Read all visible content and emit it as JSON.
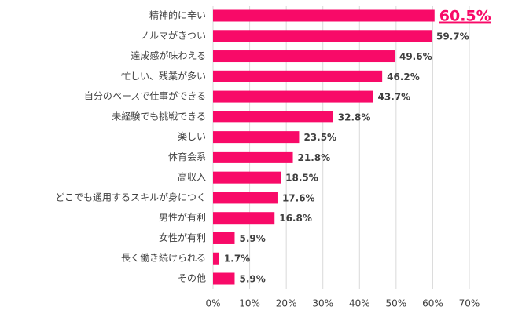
{
  "chart_data": {
    "type": "bar",
    "orientation": "horizontal",
    "categories": [
      "精神的に辛い",
      "ノルマがきつい",
      "達成感が味わえる",
      "忙しい、残業が多い",
      "自分のペースで仕事ができる",
      "未経験でも挑戦できる",
      "楽しい",
      "体育会系",
      "高収入",
      "どこでも通用するスキルが身につく",
      "男性が有利",
      "女性が有利",
      "長く働き続けられる",
      "その他"
    ],
    "values": [
      60.5,
      59.7,
      49.6,
      46.2,
      43.7,
      32.8,
      23.5,
      21.8,
      18.5,
      17.6,
      16.8,
      5.9,
      1.7,
      5.9
    ],
    "value_labels": [
      "60.5%",
      "59.7%",
      "49.6%",
      "46.2%",
      "43.7%",
      "32.8%",
      "23.5%",
      "21.8%",
      "18.5%",
      "17.6%",
      "16.8%",
      "5.9%",
      "1.7%",
      "5.9%"
    ],
    "color": "#f80a68",
    "xlim": [
      0,
      70
    ],
    "xticks": [
      {
        "value": 0,
        "label": "0%"
      },
      {
        "value": 10,
        "label": "10%"
      },
      {
        "value": 20,
        "label": "20%"
      },
      {
        "value": 30,
        "label": "30%"
      },
      {
        "value": 40,
        "label": "40%"
      },
      {
        "value": 50,
        "label": "50%"
      },
      {
        "value": 60,
        "label": "60%"
      },
      {
        "value": 70,
        "label": "70%"
      }
    ],
    "grid": true
  }
}
